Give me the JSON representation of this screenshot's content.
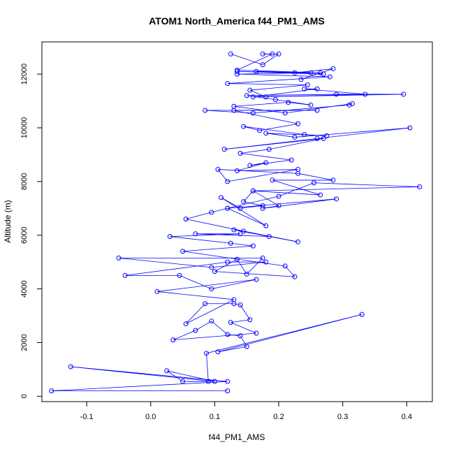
{
  "chart_data": {
    "type": "line",
    "title": "ATOM1 North_America f44_PM1_AMS",
    "xlabel": "f44_PM1_AMS",
    "ylabel": "Altitude (m)",
    "xlim": [
      -0.17,
      0.44
    ],
    "ylim": [
      -200,
      13200
    ],
    "x_ticks": [
      -0.1,
      0.0,
      0.1,
      0.2,
      0.3,
      0.4
    ],
    "y_ticks": [
      0,
      2000,
      4000,
      6000,
      8000,
      10000,
      12000
    ],
    "x_tick_labels": [
      "-0.1",
      "0.0",
      "0.1",
      "0.2",
      "0.3",
      "0.4"
    ],
    "y_tick_labels": [
      "0",
      "2000",
      "4000",
      "6000",
      "8000",
      "10000",
      "12000"
    ],
    "grid": false,
    "series_color": "#0000ff",
    "marker": "open-circle",
    "series": [
      {
        "x": [
          0.12,
          -0.155,
          0.12,
          -0.125,
          0.1,
          0.025,
          0.05,
          0.09,
          0.087,
          0.33,
          0.105,
          0.15,
          0.14,
          0.12,
          0.095,
          0.07,
          0.035,
          0.165,
          0.125,
          0.155,
          0.14,
          0.13,
          0.085,
          0.055,
          0.13,
          0.01,
          0.165,
          0.095,
          0.045,
          -0.04,
          0.12,
          0.18,
          0.095,
          -0.05,
          0.175,
          0.15,
          0.135,
          0.1,
          0.225,
          0.21,
          0.05,
          0.16,
          0.125,
          0.03,
          0.14,
          0.07,
          0.185,
          0.13,
          0.23,
          0.145,
          0.055,
          0.095,
          0.12,
          0.18,
          0.11,
          0.14,
          0.175,
          0.145,
          0.16,
          0.2,
          0.175,
          0.29,
          0.12,
          0.2,
          0.255,
          0.42,
          0.16,
          0.265,
          0.19,
          0.285,
          0.23,
          0.105,
          0.12,
          0.23,
          0.135,
          0.18,
          0.155,
          0.22,
          0.14,
          0.185,
          0.27,
          0.115,
          0.26,
          0.405,
          0.225,
          0.18,
          0.275,
          0.24,
          0.145,
          0.17,
          0.23,
          0.13,
          0.26,
          0.085,
          0.16,
          0.31,
          0.315,
          0.21,
          0.13,
          0.215,
          0.25,
          0.195,
          0.15,
          0.29,
          0.395,
          0.16,
          0.26,
          0.24,
          0.335,
          0.18,
          0.155,
          0.245,
          0.12,
          0.28,
          0.135,
          0.25,
          0.165,
          0.27,
          0.135,
          0.225,
          0.285,
          0.235,
          0.265,
          0.135,
          0.19,
          0.175,
          0.2,
          0.175,
          0.125
        ],
        "y": [
          200,
          200,
          550,
          1100,
          550,
          950,
          550,
          550,
          1600,
          3050,
          1650,
          1850,
          2250,
          2300,
          2800,
          2450,
          2100,
          2350,
          2750,
          2850,
          3400,
          3450,
          3450,
          2700,
          3600,
          3900,
          4350,
          4000,
          4500,
          4500,
          5000,
          5000,
          4800,
          5150,
          5150,
          4550,
          5100,
          4650,
          4450,
          4850,
          5400,
          5600,
          5700,
          5950,
          6050,
          6050,
          5950,
          6200,
          5750,
          6150,
          6600,
          6850,
          7000,
          6350,
          7400,
          7000,
          7100,
          7250,
          7650,
          7100,
          7000,
          7350,
          7000,
          7450,
          7950,
          7800,
          7650,
          7500,
          8050,
          8050,
          8300,
          8450,
          8000,
          8450,
          8400,
          8700,
          8600,
          8800,
          9050,
          9200,
          9600,
          9200,
          9600,
          10000,
          9650,
          9800,
          9700,
          9750,
          10050,
          9900,
          10150,
          10650,
          10650,
          10650,
          10550,
          10850,
          10900,
          10550,
          10800,
          10950,
          10850,
          11050,
          11200,
          11250,
          11250,
          11150,
          11450,
          11450,
          11250,
          11150,
          11400,
          11600,
          11650,
          11900,
          12000,
          12050,
          12100,
          12000,
          12100,
          12050,
          12200,
          11800,
          12050,
          12150,
          12750,
          12750,
          12750,
          12350,
          12750
        ]
      }
    ]
  }
}
